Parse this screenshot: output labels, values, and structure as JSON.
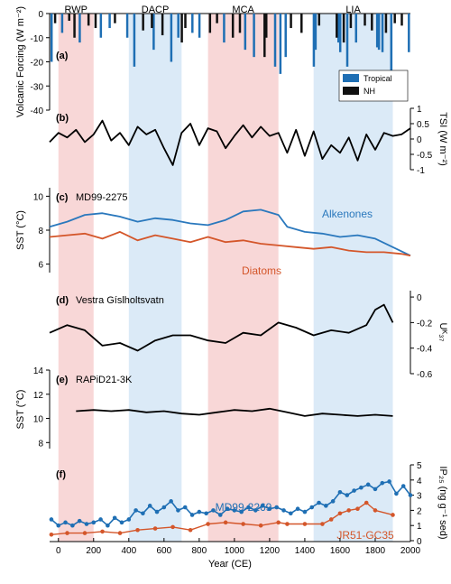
{
  "periods": [
    {
      "label": "RWP",
      "start": 0,
      "end": 200,
      "color": "#f8d7d7"
    },
    {
      "label": "DACP",
      "start": 400,
      "end": 700,
      "color": "#dbeaf7"
    },
    {
      "label": "MCA",
      "start": 850,
      "end": 1250,
      "color": "#f8d7d7"
    },
    {
      "label": "LIA",
      "start": 1450,
      "end": 1900,
      "color": "#dbeaf7"
    }
  ],
  "xaxis": {
    "label": "Year (CE)",
    "range": [
      -50,
      2000
    ],
    "ticks": [
      "0",
      "200",
      "400",
      "600",
      "800",
      "1000",
      "1200",
      "1400",
      "1600",
      "1800",
      "2000"
    ]
  },
  "colors": {
    "tropical": "#1f6fb4",
    "nh": "#111111",
    "alkenones": "#2a78bd",
    "diatoms": "#d4562a",
    "md2269": "#1f6fb4",
    "jr51": "#d4562a",
    "grey": "#8c8c8c",
    "smooth": "#000000"
  },
  "chart_data": [
    {
      "panel": "a",
      "type": "bar",
      "ylabel": "Volcanic Forcing (W m⁻²)",
      "ylim": [
        -40,
        0
      ],
      "yticks": [
        "0",
        "-10",
        "-20",
        "-30",
        "-40"
      ],
      "legend": [
        "Tropical",
        "NH"
      ],
      "legend_position": "right",
      "series": [
        {
          "name": "Tropical",
          "x": [
            -40,
            20,
            120,
            240,
            290,
            390,
            430,
            540,
            640,
            680,
            760,
            800,
            940,
            1060,
            1110,
            1230,
            1260,
            1290,
            1450,
            1460,
            1590,
            1600,
            1640,
            1690,
            1810,
            1820,
            1840,
            1890,
            1990
          ],
          "values": [
            -20,
            -8,
            -12,
            -10,
            -6,
            -10,
            -22,
            -15,
            -20,
            -10,
            -8,
            -10,
            -12,
            -15,
            -18,
            -22,
            -25,
            -18,
            -22,
            -15,
            -12,
            -16,
            -22,
            -12,
            -14,
            -15,
            -16,
            -24,
            -16
          ]
        },
        {
          "name": "NH",
          "x": [
            -20,
            60,
            90,
            170,
            210,
            320,
            480,
            530,
            590,
            700,
            720,
            860,
            900,
            990,
            1030,
            1170,
            1180,
            1320,
            1380,
            1480,
            1580,
            1620,
            1660,
            1740,
            1780,
            1860,
            1910,
            1950
          ],
          "values": [
            -4,
            -3,
            -10,
            -5,
            -6,
            -4,
            -7,
            -6,
            -9,
            -12,
            -6,
            -8,
            -4,
            -10,
            -8,
            -18,
            -10,
            -6,
            -8,
            -5,
            -10,
            -12,
            -6,
            -5,
            -7,
            -8,
            -4,
            -5
          ]
        }
      ]
    },
    {
      "panel": "b",
      "type": "line",
      "ylabel": "TSI (W m⁻²)",
      "ylim": [
        -1,
        1
      ],
      "yticks": [
        "1",
        "0.5",
        "0",
        "-0.5",
        "-1"
      ],
      "series": [
        {
          "name": "TSI",
          "x": [
            -50,
            0,
            50,
            100,
            150,
            200,
            250,
            300,
            350,
            400,
            450,
            500,
            550,
            600,
            650,
            700,
            750,
            800,
            850,
            900,
            950,
            1000,
            1050,
            1100,
            1150,
            1200,
            1250,
            1300,
            1350,
            1400,
            1450,
            1500,
            1550,
            1600,
            1650,
            1700,
            1750,
            1800,
            1850,
            1900,
            1950,
            2000
          ],
          "values": [
            -0.1,
            0.2,
            0.05,
            0.3,
            -0.1,
            0.15,
            0.6,
            -0.05,
            0.2,
            -0.2,
            0.4,
            0.15,
            0.3,
            -0.3,
            -0.85,
            0.2,
            0.5,
            -0.2,
            0.35,
            0.25,
            -0.3,
            0.1,
            0.45,
            0.05,
            0.4,
            0.1,
            0.2,
            -0.45,
            0.3,
            -0.55,
            0.25,
            -0.65,
            -0.2,
            -0.45,
            0.05,
            -0.7,
            0.15,
            -0.35,
            0.2,
            0.1,
            0.15,
            0.35
          ]
        }
      ]
    },
    {
      "panel": "c",
      "site": "MD99-2275",
      "type": "line",
      "ylabel": "SST (°C)",
      "ylim": [
        5.5,
        10.5
      ],
      "yticks": [
        "10",
        "8",
        "6"
      ],
      "series": [
        {
          "name": "Alkenones",
          "x": [
            -50,
            50,
            150,
            250,
            350,
            450,
            550,
            650,
            750,
            850,
            950,
            1050,
            1150,
            1250,
            1300,
            1400,
            1500,
            1600,
            1700,
            1800,
            1900,
            2000
          ],
          "values": [
            8.2,
            8.5,
            8.9,
            9.0,
            8.8,
            8.5,
            8.7,
            8.6,
            8.4,
            8.3,
            8.6,
            9.1,
            9.2,
            8.9,
            8.2,
            7.9,
            7.8,
            7.6,
            7.7,
            7.5,
            7.0,
            6.5
          ]
        },
        {
          "name": "Diatoms",
          "x": [
            -50,
            50,
            150,
            250,
            350,
            450,
            550,
            650,
            750,
            850,
            950,
            1050,
            1150,
            1250,
            1350,
            1450,
            1550,
            1650,
            1750,
            1850,
            1950,
            2000
          ],
          "values": [
            7.6,
            7.7,
            7.8,
            7.5,
            7.9,
            7.4,
            7.7,
            7.5,
            7.3,
            7.6,
            7.3,
            7.4,
            7.2,
            7.1,
            7.0,
            6.9,
            7.0,
            6.8,
            6.7,
            6.7,
            6.6,
            6.5
          ]
        }
      ]
    },
    {
      "panel": "d",
      "site": "Vestra Gíslholtsvatn",
      "type": "line",
      "ylabel": "Uᴷ₃₇",
      "ylim": [
        -0.6,
        0.05
      ],
      "yticks": [
        "0",
        "-0.2",
        "-0.4",
        "-0.6"
      ],
      "series": [
        {
          "name": "smooth",
          "x": [
            -50,
            50,
            150,
            250,
            350,
            450,
            550,
            650,
            750,
            850,
            950,
            1050,
            1150,
            1250,
            1350,
            1450,
            1550,
            1650,
            1750,
            1800,
            1850,
            1900
          ],
          "values": [
            -0.28,
            -0.22,
            -0.26,
            -0.38,
            -0.36,
            -0.42,
            -0.34,
            -0.3,
            -0.3,
            -0.34,
            -0.36,
            -0.28,
            -0.3,
            -0.2,
            -0.24,
            -0.3,
            -0.26,
            -0.28,
            -0.22,
            -0.1,
            -0.06,
            -0.2
          ]
        }
      ]
    },
    {
      "panel": "e",
      "site": "RAPiD21-3K",
      "type": "line",
      "ylabel": "SST (°C)",
      "ylim": [
        7.5,
        14
      ],
      "yticks": [
        "14",
        "12",
        "10",
        "8"
      ],
      "series": [
        {
          "name": "smooth",
          "x": [
            100,
            200,
            300,
            400,
            500,
            600,
            700,
            800,
            900,
            1000,
            1100,
            1200,
            1300,
            1400,
            1500,
            1600,
            1700,
            1800,
            1900
          ],
          "values": [
            10.6,
            10.7,
            10.6,
            10.7,
            10.5,
            10.6,
            10.4,
            10.3,
            10.5,
            10.7,
            10.6,
            10.8,
            10.5,
            10.2,
            10.4,
            10.3,
            10.2,
            10.3,
            10.2
          ]
        }
      ]
    },
    {
      "panel": "f",
      "type": "line",
      "ylabel": "IP₂₅ (ng g⁻¹ sed)",
      "ylim": [
        0,
        5
      ],
      "yticks": [
        "5",
        "4",
        "3",
        "2",
        "1",
        "0"
      ],
      "series": [
        {
          "name": "MD99-2269",
          "x": [
            -40,
            0,
            40,
            80,
            120,
            160,
            200,
            240,
            280,
            320,
            360,
            400,
            440,
            480,
            520,
            560,
            600,
            640,
            680,
            720,
            760,
            800,
            840,
            880,
            920,
            960,
            1000,
            1040,
            1080,
            1120,
            1160,
            1200,
            1240,
            1280,
            1320,
            1360,
            1400,
            1440,
            1480,
            1520,
            1560,
            1600,
            1640,
            1680,
            1720,
            1760,
            1800,
            1840,
            1880,
            1920,
            1960,
            2000
          ],
          "values": [
            1.4,
            1.0,
            1.2,
            1.0,
            1.3,
            1.1,
            1.2,
            1.4,
            1.0,
            1.5,
            1.2,
            1.4,
            2.0,
            1.8,
            2.3,
            1.9,
            2.2,
            2.6,
            2.0,
            2.2,
            1.7,
            1.9,
            1.8,
            2.0,
            1.7,
            2.1,
            2.0,
            1.9,
            2.2,
            2.0,
            2.3,
            2.1,
            2.2,
            2.0,
            1.8,
            2.1,
            1.9,
            2.2,
            2.5,
            2.3,
            2.6,
            3.2,
            3.0,
            3.3,
            3.5,
            3.7,
            3.4,
            3.8,
            3.9,
            3.1,
            3.6,
            3.0
          ]
        },
        {
          "name": "JR51-GC35",
          "x": [
            -40,
            50,
            150,
            250,
            350,
            450,
            550,
            650,
            750,
            850,
            950,
            1050,
            1150,
            1250,
            1300,
            1400,
            1500,
            1550,
            1600,
            1650,
            1700,
            1750,
            1800,
            1900
          ],
          "values": [
            0.4,
            0.5,
            0.5,
            0.6,
            0.5,
            0.7,
            0.8,
            0.9,
            0.7,
            1.1,
            1.2,
            1.1,
            1.0,
            1.2,
            1.1,
            1.1,
            1.1,
            1.4,
            1.8,
            2.0,
            2.1,
            2.5,
            2.0,
            1.7
          ]
        }
      ]
    }
  ]
}
